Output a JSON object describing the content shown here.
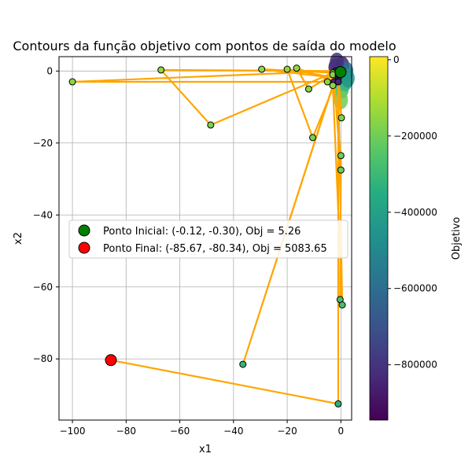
{
  "chart_data": {
    "type": "scatter",
    "title": "Contours da função objetivo com pontos de saída do modelo",
    "xlabel": "x1",
    "ylabel": "x2",
    "xlim": [
      -105,
      4
    ],
    "ylim": [
      -97,
      4
    ],
    "grid": true,
    "x_ticks": [
      -100,
      -80,
      -60,
      -40,
      -20,
      0
    ],
    "x_tick_labels": [
      "−100",
      "−80",
      "−60",
      "−40",
      "−20",
      "0"
    ],
    "y_ticks": [
      0,
      -20,
      -40,
      -60,
      -80
    ],
    "y_tick_labels": [
      "0",
      "−20",
      "−40",
      "−60",
      "−80"
    ],
    "path_color": "#ffa500",
    "path": [
      [
        -0.12,
        -0.3
      ],
      [
        -5,
        -3
      ],
      [
        -100,
        -3
      ],
      [
        -2,
        0
      ],
      [
        -67,
        0.3
      ],
      [
        -48.5,
        -15
      ],
      [
        -3,
        -0.5
      ],
      [
        -29.5,
        0.5
      ],
      [
        -1,
        -2
      ],
      [
        -20,
        0.5
      ],
      [
        -10.5,
        -18.5
      ],
      [
        -2,
        -3
      ],
      [
        -16.5,
        0.8
      ],
      [
        -12,
        -5
      ],
      [
        -3,
        -1
      ],
      [
        0,
        -23.5
      ],
      [
        -0.3,
        -63.5
      ],
      [
        0,
        -27.5
      ],
      [
        -2.5,
        -3
      ],
      [
        -36.5,
        -81.5
      ],
      [
        -3,
        -4
      ],
      [
        0.5,
        -65
      ],
      [
        -1,
        -3
      ],
      [
        0.2,
        -13
      ],
      [
        -1,
        -1
      ],
      [
        -1,
        -92.5
      ],
      [
        -85.67,
        -80.34
      ]
    ],
    "contour_clusters": [
      {
        "x": -2,
        "y": 1,
        "value": -900000
      },
      {
        "x": -1,
        "y": 0.5,
        "value": -750000
      },
      {
        "x": 0.5,
        "y": 1.5,
        "value": -850000
      },
      {
        "x": 1,
        "y": -1,
        "value": -500000
      },
      {
        "x": 2,
        "y": 0,
        "value": -600000
      },
      {
        "x": 1.5,
        "y": -3,
        "value": -380000
      },
      {
        "x": 0.3,
        "y": -5,
        "value": -300000
      },
      {
        "x": 2.5,
        "y": -2,
        "value": -450000
      },
      {
        "x": -1.5,
        "y": 2.5,
        "value": -800000
      },
      {
        "x": 0,
        "y": -8,
        "value": -200000
      }
    ],
    "start": {
      "x": -0.12,
      "y": -0.3,
      "color": "#008000"
    },
    "end": {
      "x": -85.67,
      "y": -80.34,
      "color": "#ff0000"
    },
    "legend_position": "center-left",
    "legend": [
      {
        "label": "Ponto Inicial: (-0.12, -0.30), Obj = 5.26",
        "color": "#008000"
      },
      {
        "label": "Ponto Final: (-85.67, -80.34), Obj = 5083.65",
        "color": "#ff0000"
      }
    ],
    "colorbar": {
      "label": "Objetivo",
      "min": -945000,
      "max": 8000,
      "ticks": [
        0,
        -200000,
        -400000,
        -600000,
        -800000
      ],
      "tick_labels": [
        "0",
        "−200000",
        "−400000",
        "−600000",
        "−800000"
      ],
      "colormap": [
        "#440154",
        "#472c7a",
        "#3b518b",
        "#2c718e",
        "#21908d",
        "#27ad81",
        "#5cc863",
        "#aadc32",
        "#fde725"
      ]
    }
  }
}
